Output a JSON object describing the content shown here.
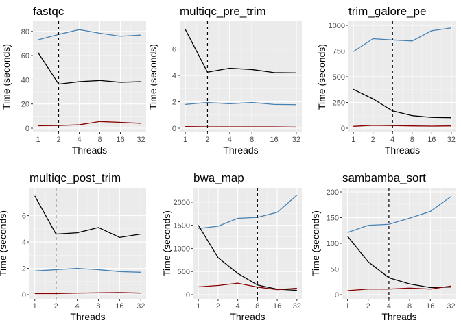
{
  "colors": {
    "panel_background": "#ebebeb",
    "grid_major": "#ffffff",
    "grid_minor": "#f5f5f5",
    "tick_color": "#333333",
    "vline_color": "#000000"
  },
  "chart_data": [
    {
      "type": "line",
      "title": "fastqc",
      "xlabel": "Threads",
      "ylabel": "Time (seconds)",
      "x_scale": "log2",
      "x": [
        1,
        2,
        4,
        8,
        16,
        32
      ],
      "xticks": [
        "1",
        "2",
        "4",
        "8",
        "16",
        "32"
      ],
      "ylim": [
        0,
        85
      ],
      "yticks": [
        0,
        20,
        40,
        60,
        80
      ],
      "vline_x": 2,
      "grid": true,
      "legend": "none",
      "series": [
        {
          "color": "#4682b4",
          "values": [
            73,
            77.5,
            81.5,
            78.5,
            76,
            77
          ]
        },
        {
          "color": "#000000",
          "values": [
            62.5,
            36.5,
            38.5,
            39.5,
            38,
            38.5
          ]
        },
        {
          "color": "#8b0000",
          "values": [
            2,
            2.2,
            2.8,
            5.5,
            4.8,
            4
          ]
        }
      ]
    },
    {
      "type": "line",
      "title": "multiqc_pre_trim",
      "xlabel": "Threads",
      "ylabel": "Time (seconds)",
      "x_scale": "log2",
      "x": [
        1,
        2,
        4,
        8,
        16,
        32
      ],
      "xticks": [
        "1",
        "2",
        "4",
        "8",
        "16",
        "32"
      ],
      "ylim": [
        0,
        7.8
      ],
      "yticks": [
        0,
        2,
        4,
        6
      ],
      "vline_x": 2,
      "grid": true,
      "legend": "none",
      "series": [
        {
          "color": "#4682b4",
          "values": [
            1.8,
            1.95,
            1.85,
            1.95,
            1.8,
            1.78
          ]
        },
        {
          "color": "#000000",
          "values": [
            7.5,
            4.25,
            4.55,
            4.45,
            4.22,
            4.2
          ]
        },
        {
          "color": "#8b0000",
          "values": [
            0.12,
            0.1,
            0.1,
            0.1,
            0.1,
            0.08
          ]
        }
      ]
    },
    {
      "type": "line",
      "title": "trim_galore_pe",
      "xlabel": "Threads",
      "ylabel": "Time (seconds)",
      "x_scale": "log2",
      "x": [
        1,
        2,
        4,
        8,
        16,
        32
      ],
      "xticks": [
        "1",
        "2",
        "4",
        "8",
        "16",
        "32"
      ],
      "ylim": [
        0,
        1000
      ],
      "yticks": [
        0,
        250,
        500,
        750,
        1000
      ],
      "vline_x": 4,
      "grid": true,
      "legend": "none",
      "series": [
        {
          "color": "#4682b4",
          "values": [
            745,
            870,
            858,
            848,
            948,
            975
          ]
        },
        {
          "color": "#000000",
          "values": [
            378,
            285,
            168,
            122,
            105,
            102
          ]
        },
        {
          "color": "#8b0000",
          "values": [
            18,
            28,
            25,
            22,
            20,
            22
          ]
        }
      ]
    },
    {
      "type": "line",
      "title": "multiqc_post_trim",
      "xlabel": "Threads",
      "ylabel": "Time (seconds)",
      "x_scale": "log2",
      "x": [
        1,
        2,
        4,
        8,
        16,
        32
      ],
      "xticks": [
        "1",
        "2",
        "4",
        "8",
        "16",
        "32"
      ],
      "ylim": [
        0,
        7.8
      ],
      "yticks": [
        0,
        2,
        4,
        6
      ],
      "vline_x": 2,
      "grid": true,
      "legend": "none",
      "series": [
        {
          "color": "#4682b4",
          "values": [
            1.8,
            1.9,
            2.0,
            1.9,
            1.75,
            1.7
          ]
        },
        {
          "color": "#000000",
          "values": [
            7.5,
            4.6,
            4.7,
            5.1,
            4.35,
            4.6
          ]
        },
        {
          "color": "#8b0000",
          "values": [
            0.08,
            0.08,
            0.12,
            0.14,
            0.16,
            0.12
          ]
        }
      ]
    },
    {
      "type": "line",
      "title": "bwa_map",
      "xlabel": "Threads",
      "ylabel": "Time (seconds)",
      "x_scale": "log2",
      "x": [
        1,
        2,
        4,
        8,
        16,
        32
      ],
      "xticks": [
        "1",
        "2",
        "4",
        "8",
        "16",
        "32"
      ],
      "ylim": [
        0,
        2220
      ],
      "yticks": [
        0,
        500,
        1000,
        1500,
        2000
      ],
      "vline_x": 8,
      "grid": true,
      "legend": "none",
      "series": [
        {
          "color": "#4682b4",
          "values": [
            1430,
            1480,
            1650,
            1670,
            1780,
            2150
          ]
        },
        {
          "color": "#000000",
          "values": [
            1500,
            800,
            460,
            210,
            120,
            95
          ]
        },
        {
          "color": "#8b0000",
          "values": [
            170,
            200,
            250,
            165,
            110,
            140
          ]
        }
      ]
    },
    {
      "type": "line",
      "title": "sambamba_sort",
      "xlabel": "Threads",
      "ylabel": "Time (seconds)",
      "x_scale": "log2",
      "x": [
        1,
        2,
        4,
        8,
        16,
        32
      ],
      "xticks": [
        "1",
        "2",
        "4",
        "8",
        "16",
        "32"
      ],
      "ylim": [
        0,
        200
      ],
      "yticks": [
        0,
        50,
        100,
        150,
        200
      ],
      "vline_x": 4,
      "grid": true,
      "legend": "none",
      "series": [
        {
          "color": "#4682b4",
          "values": [
            121,
            135,
            137,
            149,
            162,
            191
          ]
        },
        {
          "color": "#000000",
          "values": [
            114,
            64,
            33,
            21,
            14,
            15
          ]
        },
        {
          "color": "#8b0000",
          "values": [
            8,
            11,
            11,
            13,
            11,
            17
          ]
        }
      ]
    }
  ]
}
